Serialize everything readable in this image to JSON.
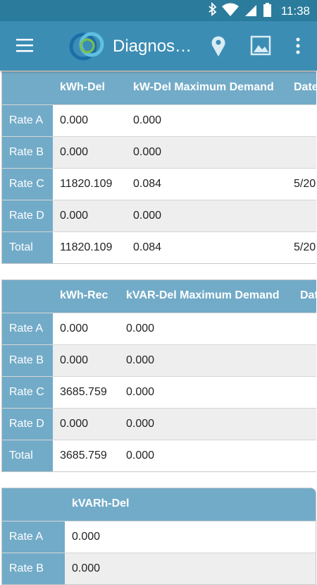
{
  "status_bar": {
    "time": "11:38"
  },
  "app_bar": {
    "title": "Diagnos…"
  },
  "tables": [
    {
      "columns": [
        "kWh-Del",
        "kW-Del Maximum Demand",
        "Date"
      ],
      "rows": [
        {
          "label": "Rate A",
          "cells": [
            "0.000",
            "0.000"
          ]
        },
        {
          "label": "Rate B",
          "cells": [
            "0.000",
            "0.000"
          ]
        },
        {
          "label": "Rate C",
          "cells": [
            "11820.109",
            "0.084",
            "5/20"
          ]
        },
        {
          "label": "Rate D",
          "cells": [
            "0.000",
            "0.000"
          ]
        },
        {
          "label": "Total",
          "cells": [
            "11820.109",
            "0.084",
            "5/20"
          ]
        }
      ]
    },
    {
      "columns": [
        "kWh-Rec",
        "kVAR-Del Maximum Demand",
        "Date"
      ],
      "rows": [
        {
          "label": "Rate A",
          "cells": [
            "0.000",
            "0.000"
          ]
        },
        {
          "label": "Rate B",
          "cells": [
            "0.000",
            "0.000"
          ]
        },
        {
          "label": "Rate C",
          "cells": [
            "3685.759",
            "0.000"
          ]
        },
        {
          "label": "Rate D",
          "cells": [
            "0.000",
            "0.000"
          ]
        },
        {
          "label": "Total",
          "cells": [
            "3685.759",
            "0.000"
          ]
        }
      ]
    },
    {
      "columns": [
        "kVARh-Del"
      ],
      "rows": [
        {
          "label": "Rate A",
          "cells": [
            "0.000"
          ]
        },
        {
          "label": "Rate B",
          "cells": [
            "0.000"
          ]
        }
      ]
    }
  ]
}
